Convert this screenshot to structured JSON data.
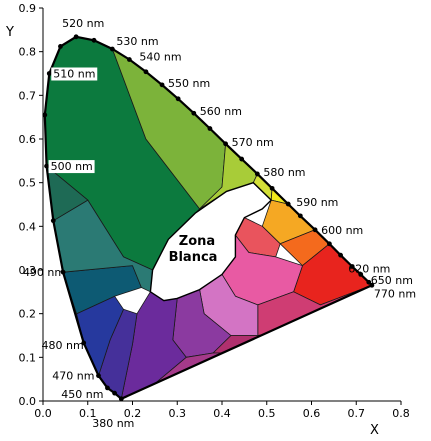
{
  "chart_data": {
    "type": "chromaticity-diagram",
    "xlabel": "X",
    "ylabel": "Y",
    "xlim": [
      0.0,
      0.8
    ],
    "ylim": [
      0.0,
      0.9
    ],
    "x_ticks": [
      "0.0",
      "0.1",
      "0.2",
      "0.3",
      "0.4",
      "0.5",
      "0.6",
      "0.7",
      "0.8"
    ],
    "y_ticks": [
      "0.0",
      "0.1",
      "0.2",
      "0.3",
      "0.4",
      "0.5",
      "0.6",
      "0.7",
      "0.8",
      "0.9"
    ],
    "white_zone_label": [
      "Zona",
      "Blanca"
    ],
    "locus": [
      {
        "x": 0.175,
        "y": 0.005
      },
      {
        "x": 0.16,
        "y": 0.018
      },
      {
        "x": 0.144,
        "y": 0.03
      },
      {
        "x": 0.124,
        "y": 0.058
      },
      {
        "x": 0.091,
        "y": 0.133
      },
      {
        "x": 0.045,
        "y": 0.295
      },
      {
        "x": 0.023,
        "y": 0.413
      },
      {
        "x": 0.008,
        "y": 0.538
      },
      {
        "x": 0.004,
        "y": 0.655
      },
      {
        "x": 0.014,
        "y": 0.75
      },
      {
        "x": 0.039,
        "y": 0.812
      },
      {
        "x": 0.074,
        "y": 0.834
      },
      {
        "x": 0.114,
        "y": 0.826
      },
      {
        "x": 0.155,
        "y": 0.806
      },
      {
        "x": 0.193,
        "y": 0.782
      },
      {
        "x": 0.23,
        "y": 0.754
      },
      {
        "x": 0.266,
        "y": 0.724
      },
      {
        "x": 0.302,
        "y": 0.692
      },
      {
        "x": 0.337,
        "y": 0.659
      },
      {
        "x": 0.373,
        "y": 0.624
      },
      {
        "x": 0.408,
        "y": 0.589
      },
      {
        "x": 0.444,
        "y": 0.554
      },
      {
        "x": 0.479,
        "y": 0.52
      },
      {
        "x": 0.512,
        "y": 0.487
      },
      {
        "x": 0.548,
        "y": 0.451
      },
      {
        "x": 0.575,
        "y": 0.424
      },
      {
        "x": 0.608,
        "y": 0.392
      },
      {
        "x": 0.64,
        "y": 0.36
      },
      {
        "x": 0.665,
        "y": 0.334
      },
      {
        "x": 0.691,
        "y": 0.308
      },
      {
        "x": 0.71,
        "y": 0.29
      },
      {
        "x": 0.728,
        "y": 0.272
      },
      {
        "x": 0.735,
        "y": 0.265
      }
    ],
    "white_zone": [
      {
        "x": 0.27,
        "y": 0.23
      },
      {
        "x": 0.24,
        "y": 0.25
      },
      {
        "x": 0.245,
        "y": 0.3
      },
      {
        "x": 0.28,
        "y": 0.37
      },
      {
        "x": 0.34,
        "y": 0.43
      },
      {
        "x": 0.41,
        "y": 0.48
      },
      {
        "x": 0.47,
        "y": 0.5
      },
      {
        "x": 0.51,
        "y": 0.46
      },
      {
        "x": 0.49,
        "y": 0.44
      },
      {
        "x": 0.45,
        "y": 0.42
      },
      {
        "x": 0.43,
        "y": 0.38
      },
      {
        "x": 0.43,
        "y": 0.33
      },
      {
        "x": 0.4,
        "y": 0.29
      },
      {
        "x": 0.35,
        "y": 0.255
      },
      {
        "x": 0.3,
        "y": 0.235
      }
    ],
    "regions": [
      {
        "color": "#0c7a3e",
        "points": [
          [
            0.008,
            0.538
          ],
          [
            0.004,
            0.655
          ],
          [
            0.014,
            0.75
          ],
          [
            0.039,
            0.812
          ],
          [
            0.074,
            0.834
          ],
          [
            0.114,
            0.826
          ],
          [
            0.155,
            0.806
          ],
          [
            0.23,
            0.6
          ],
          [
            0.35,
            0.44
          ],
          [
            0.28,
            0.37
          ],
          [
            0.245,
            0.3
          ],
          [
            0.18,
            0.33
          ],
          [
            0.1,
            0.46
          ]
        ]
      },
      {
        "color": "#7cb33a",
        "points": [
          [
            0.155,
            0.806
          ],
          [
            0.193,
            0.782
          ],
          [
            0.23,
            0.754
          ],
          [
            0.266,
            0.724
          ],
          [
            0.302,
            0.692
          ],
          [
            0.337,
            0.659
          ],
          [
            0.373,
            0.624
          ],
          [
            0.408,
            0.589
          ],
          [
            0.4,
            0.49
          ],
          [
            0.35,
            0.44
          ],
          [
            0.23,
            0.6
          ]
        ]
      },
      {
        "color": "#a8cc38",
        "points": [
          [
            0.408,
            0.589
          ],
          [
            0.444,
            0.554
          ],
          [
            0.479,
            0.52
          ],
          [
            0.47,
            0.5
          ],
          [
            0.41,
            0.48
          ],
          [
            0.35,
            0.44
          ],
          [
            0.4,
            0.49
          ]
        ]
      },
      {
        "color": "#d4e037",
        "points": [
          [
            0.479,
            0.52
          ],
          [
            0.512,
            0.487
          ],
          [
            0.51,
            0.46
          ],
          [
            0.47,
            0.5
          ]
        ]
      },
      {
        "color": "#f1ea1c",
        "points": [
          [
            0.512,
            0.487
          ],
          [
            0.548,
            0.451
          ],
          [
            0.51,
            0.46
          ]
        ]
      },
      {
        "color": "#f5a823",
        "points": [
          [
            0.548,
            0.451
          ],
          [
            0.575,
            0.424
          ],
          [
            0.608,
            0.392
          ],
          [
            0.53,
            0.36
          ],
          [
            0.49,
            0.4
          ],
          [
            0.51,
            0.46
          ]
        ]
      },
      {
        "color": "#f46a1d",
        "points": [
          [
            0.608,
            0.392
          ],
          [
            0.64,
            0.36
          ],
          [
            0.58,
            0.31
          ],
          [
            0.53,
            0.36
          ]
        ]
      },
      {
        "color": "#e8241e",
        "points": [
          [
            0.64,
            0.36
          ],
          [
            0.665,
            0.334
          ],
          [
            0.691,
            0.308
          ],
          [
            0.71,
            0.29
          ],
          [
            0.728,
            0.272
          ],
          [
            0.735,
            0.265
          ],
          [
            0.62,
            0.22
          ],
          [
            0.56,
            0.25
          ],
          [
            0.58,
            0.31
          ]
        ]
      },
      {
        "color": "#e9545d",
        "points": [
          [
            0.43,
            0.38
          ],
          [
            0.45,
            0.42
          ],
          [
            0.49,
            0.4
          ],
          [
            0.53,
            0.36
          ],
          [
            0.52,
            0.33
          ],
          [
            0.46,
            0.34
          ]
        ]
      },
      {
        "color": "#e85aa3",
        "points": [
          [
            0.43,
            0.33
          ],
          [
            0.43,
            0.38
          ],
          [
            0.46,
            0.34
          ],
          [
            0.52,
            0.33
          ],
          [
            0.58,
            0.31
          ],
          [
            0.56,
            0.25
          ],
          [
            0.48,
            0.22
          ],
          [
            0.43,
            0.24
          ],
          [
            0.4,
            0.29
          ]
        ]
      },
      {
        "color": "#cf3d73",
        "points": [
          [
            0.48,
            0.22
          ],
          [
            0.56,
            0.25
          ],
          [
            0.62,
            0.22
          ],
          [
            0.735,
            0.265
          ],
          [
            0.6,
            0.17
          ],
          [
            0.48,
            0.15
          ]
        ]
      },
      {
        "color": "#d374c4",
        "points": [
          [
            0.35,
            0.255
          ],
          [
            0.4,
            0.29
          ],
          [
            0.43,
            0.24
          ],
          [
            0.48,
            0.22
          ],
          [
            0.48,
            0.15
          ],
          [
            0.42,
            0.15
          ],
          [
            0.36,
            0.2
          ]
        ]
      },
      {
        "color": "#b0306e",
        "points": [
          [
            0.42,
            0.15
          ],
          [
            0.48,
            0.15
          ],
          [
            0.6,
            0.17
          ],
          [
            0.735,
            0.265
          ],
          [
            0.45,
            0.11
          ],
          [
            0.38,
            0.11
          ]
        ]
      },
      {
        "color": "#8b3aa0",
        "points": [
          [
            0.3,
            0.235
          ],
          [
            0.35,
            0.255
          ],
          [
            0.36,
            0.2
          ],
          [
            0.42,
            0.15
          ],
          [
            0.38,
            0.11
          ],
          [
            0.32,
            0.1
          ],
          [
            0.29,
            0.14
          ]
        ]
      },
      {
        "color": "#a53a8a",
        "points": [
          [
            0.38,
            0.11
          ],
          [
            0.45,
            0.11
          ],
          [
            0.735,
            0.265
          ],
          [
            0.175,
            0.005
          ],
          [
            0.25,
            0.04
          ],
          [
            0.32,
            0.1
          ]
        ]
      },
      {
        "color": "#6b2b9c",
        "points": [
          [
            0.24,
            0.25
          ],
          [
            0.27,
            0.23
          ],
          [
            0.3,
            0.235
          ],
          [
            0.29,
            0.14
          ],
          [
            0.32,
            0.1
          ],
          [
            0.25,
            0.04
          ],
          [
            0.175,
            0.005
          ],
          [
            0.2,
            0.13
          ],
          [
            0.21,
            0.2
          ]
        ]
      },
      {
        "color": "#45309a",
        "points": [
          [
            0.175,
            0.005
          ],
          [
            0.16,
            0.018
          ],
          [
            0.144,
            0.03
          ],
          [
            0.124,
            0.058
          ],
          [
            0.15,
            0.14
          ],
          [
            0.18,
            0.21
          ],
          [
            0.21,
            0.2
          ],
          [
            0.2,
            0.13
          ]
        ]
      },
      {
        "color": "#26399e",
        "points": [
          [
            0.124,
            0.058
          ],
          [
            0.091,
            0.133
          ],
          [
            0.075,
            0.2
          ],
          [
            0.16,
            0.24
          ],
          [
            0.18,
            0.21
          ],
          [
            0.15,
            0.14
          ]
        ]
      },
      {
        "color": "#0d5a73",
        "points": [
          [
            0.075,
            0.2
          ],
          [
            0.045,
            0.295
          ],
          [
            0.2,
            0.31
          ],
          [
            0.22,
            0.26
          ],
          [
            0.16,
            0.24
          ]
        ]
      },
      {
        "color": "#2b7a74",
        "points": [
          [
            0.045,
            0.295
          ],
          [
            0.023,
            0.413
          ],
          [
            0.1,
            0.46
          ],
          [
            0.18,
            0.33
          ],
          [
            0.245,
            0.3
          ],
          [
            0.24,
            0.25
          ],
          [
            0.22,
            0.26
          ],
          [
            0.2,
            0.31
          ]
        ]
      },
      {
        "color": "#1e6a55",
        "points": [
          [
            0.023,
            0.413
          ],
          [
            0.008,
            0.538
          ],
          [
            0.1,
            0.46
          ]
        ]
      }
    ],
    "wavelength_labels": [
      {
        "text": "520 nm",
        "x": 0.074,
        "y": 0.834,
        "anchor": "start",
        "dx": -14,
        "dy": -10
      },
      {
        "text": "530 nm",
        "x": 0.155,
        "y": 0.806,
        "anchor": "start",
        "dx": 4,
        "dy": -4
      },
      {
        "text": "540 nm",
        "x": 0.193,
        "y": 0.782,
        "anchor": "start",
        "dx": 10,
        "dy": 1
      },
      {
        "text": "550 nm",
        "x": 0.266,
        "y": 0.724,
        "anchor": "start",
        "dx": 6,
        "dy": 2
      },
      {
        "text": "560 nm",
        "x": 0.337,
        "y": 0.659,
        "anchor": "start",
        "dx": 6,
        "dy": 2
      },
      {
        "text": "570 nm",
        "x": 0.408,
        "y": 0.589,
        "anchor": "start",
        "dx": 6,
        "dy": 2
      },
      {
        "text": "580 nm",
        "x": 0.479,
        "y": 0.52,
        "anchor": "start",
        "dx": 6,
        "dy": 2
      },
      {
        "text": "590 nm",
        "x": 0.548,
        "y": 0.451,
        "anchor": "start",
        "dx": 8,
        "dy": 2
      },
      {
        "text": "600 nm",
        "x": 0.608,
        "y": 0.392,
        "anchor": "start",
        "dx": 6,
        "dy": 4
      },
      {
        "text": "620 nm",
        "x": 0.691,
        "y": 0.308,
        "anchor": "start",
        "dx": -4,
        "dy": 6
      },
      {
        "text": "650 nm",
        "x": 0.728,
        "y": 0.272,
        "anchor": "start",
        "dx": 2,
        "dy": 2
      },
      {
        "text": "770 nm",
        "x": 0.735,
        "y": 0.265,
        "anchor": "start",
        "dx": 2,
        "dy": 12
      },
      {
        "text": "510 nm",
        "x": 0.014,
        "y": 0.75,
        "anchor": "start",
        "dx": 4,
        "dy": 4,
        "boxed": true
      },
      {
        "text": "500 nm",
        "x": 0.008,
        "y": 0.538,
        "anchor": "start",
        "dx": 4,
        "dy": 4,
        "boxed": true
      },
      {
        "text": "490 nm",
        "x": 0.045,
        "y": 0.295,
        "anchor": "end",
        "dx": 2,
        "dy": 4
      },
      {
        "text": "480 nm",
        "x": 0.091,
        "y": 0.133,
        "anchor": "end",
        "dx": 0,
        "dy": 6
      },
      {
        "text": "470 nm",
        "x": 0.124,
        "y": 0.058,
        "anchor": "end",
        "dx": -4,
        "dy": 4
      },
      {
        "text": "450 nm",
        "x": 0.144,
        "y": 0.03,
        "anchor": "end",
        "dx": -4,
        "dy": 10
      },
      {
        "text": "380 nm",
        "x": 0.175,
        "y": 0.005,
        "anchor": "middle",
        "dx": -8,
        "dy": 28
      }
    ]
  }
}
